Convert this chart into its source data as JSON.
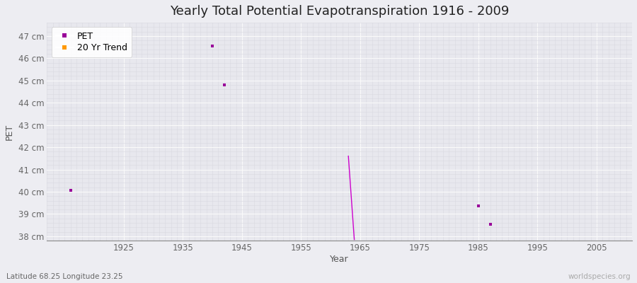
{
  "title": "Yearly Total Potential Evapotranspiration 1916 - 2009",
  "xlabel": "Year",
  "ylabel": "PET",
  "subtitle": "Latitude 68.25 Longitude 23.25",
  "watermark": "worldspecies.org",
  "xmin": 1912,
  "xmax": 2011,
  "ymin": 37.8,
  "ymax": 47.6,
  "yticks": [
    38,
    39,
    40,
    41,
    42,
    43,
    44,
    45,
    46,
    47
  ],
  "ytick_labels": [
    "38 cm",
    "39 cm",
    "40 cm",
    "41 cm",
    "42 cm",
    "43 cm",
    "44 cm",
    "45 cm",
    "46 cm",
    "47 cm"
  ],
  "xticks": [
    1925,
    1935,
    1945,
    1955,
    1965,
    1975,
    1985,
    1995,
    2005
  ],
  "pet_points_x": [
    1916,
    1940,
    1942,
    1985,
    1987
  ],
  "pet_points_y": [
    40.05,
    46.55,
    44.8,
    39.35,
    38.55
  ],
  "trend_line_x": [
    1963,
    1964
  ],
  "trend_line_y": [
    41.6,
    37.85
  ],
  "pet_color": "#990099",
  "trend_color": "#cc00cc",
  "trend_legend_color": "#ff9900",
  "bg_color": "#ededf2",
  "plot_bg_color": "#e8e8ee",
  "major_grid_color": "#fafafa",
  "minor_grid_color": "#d8d8e0",
  "title_fontsize": 13,
  "tick_fontsize": 8.5,
  "label_fontsize": 9
}
